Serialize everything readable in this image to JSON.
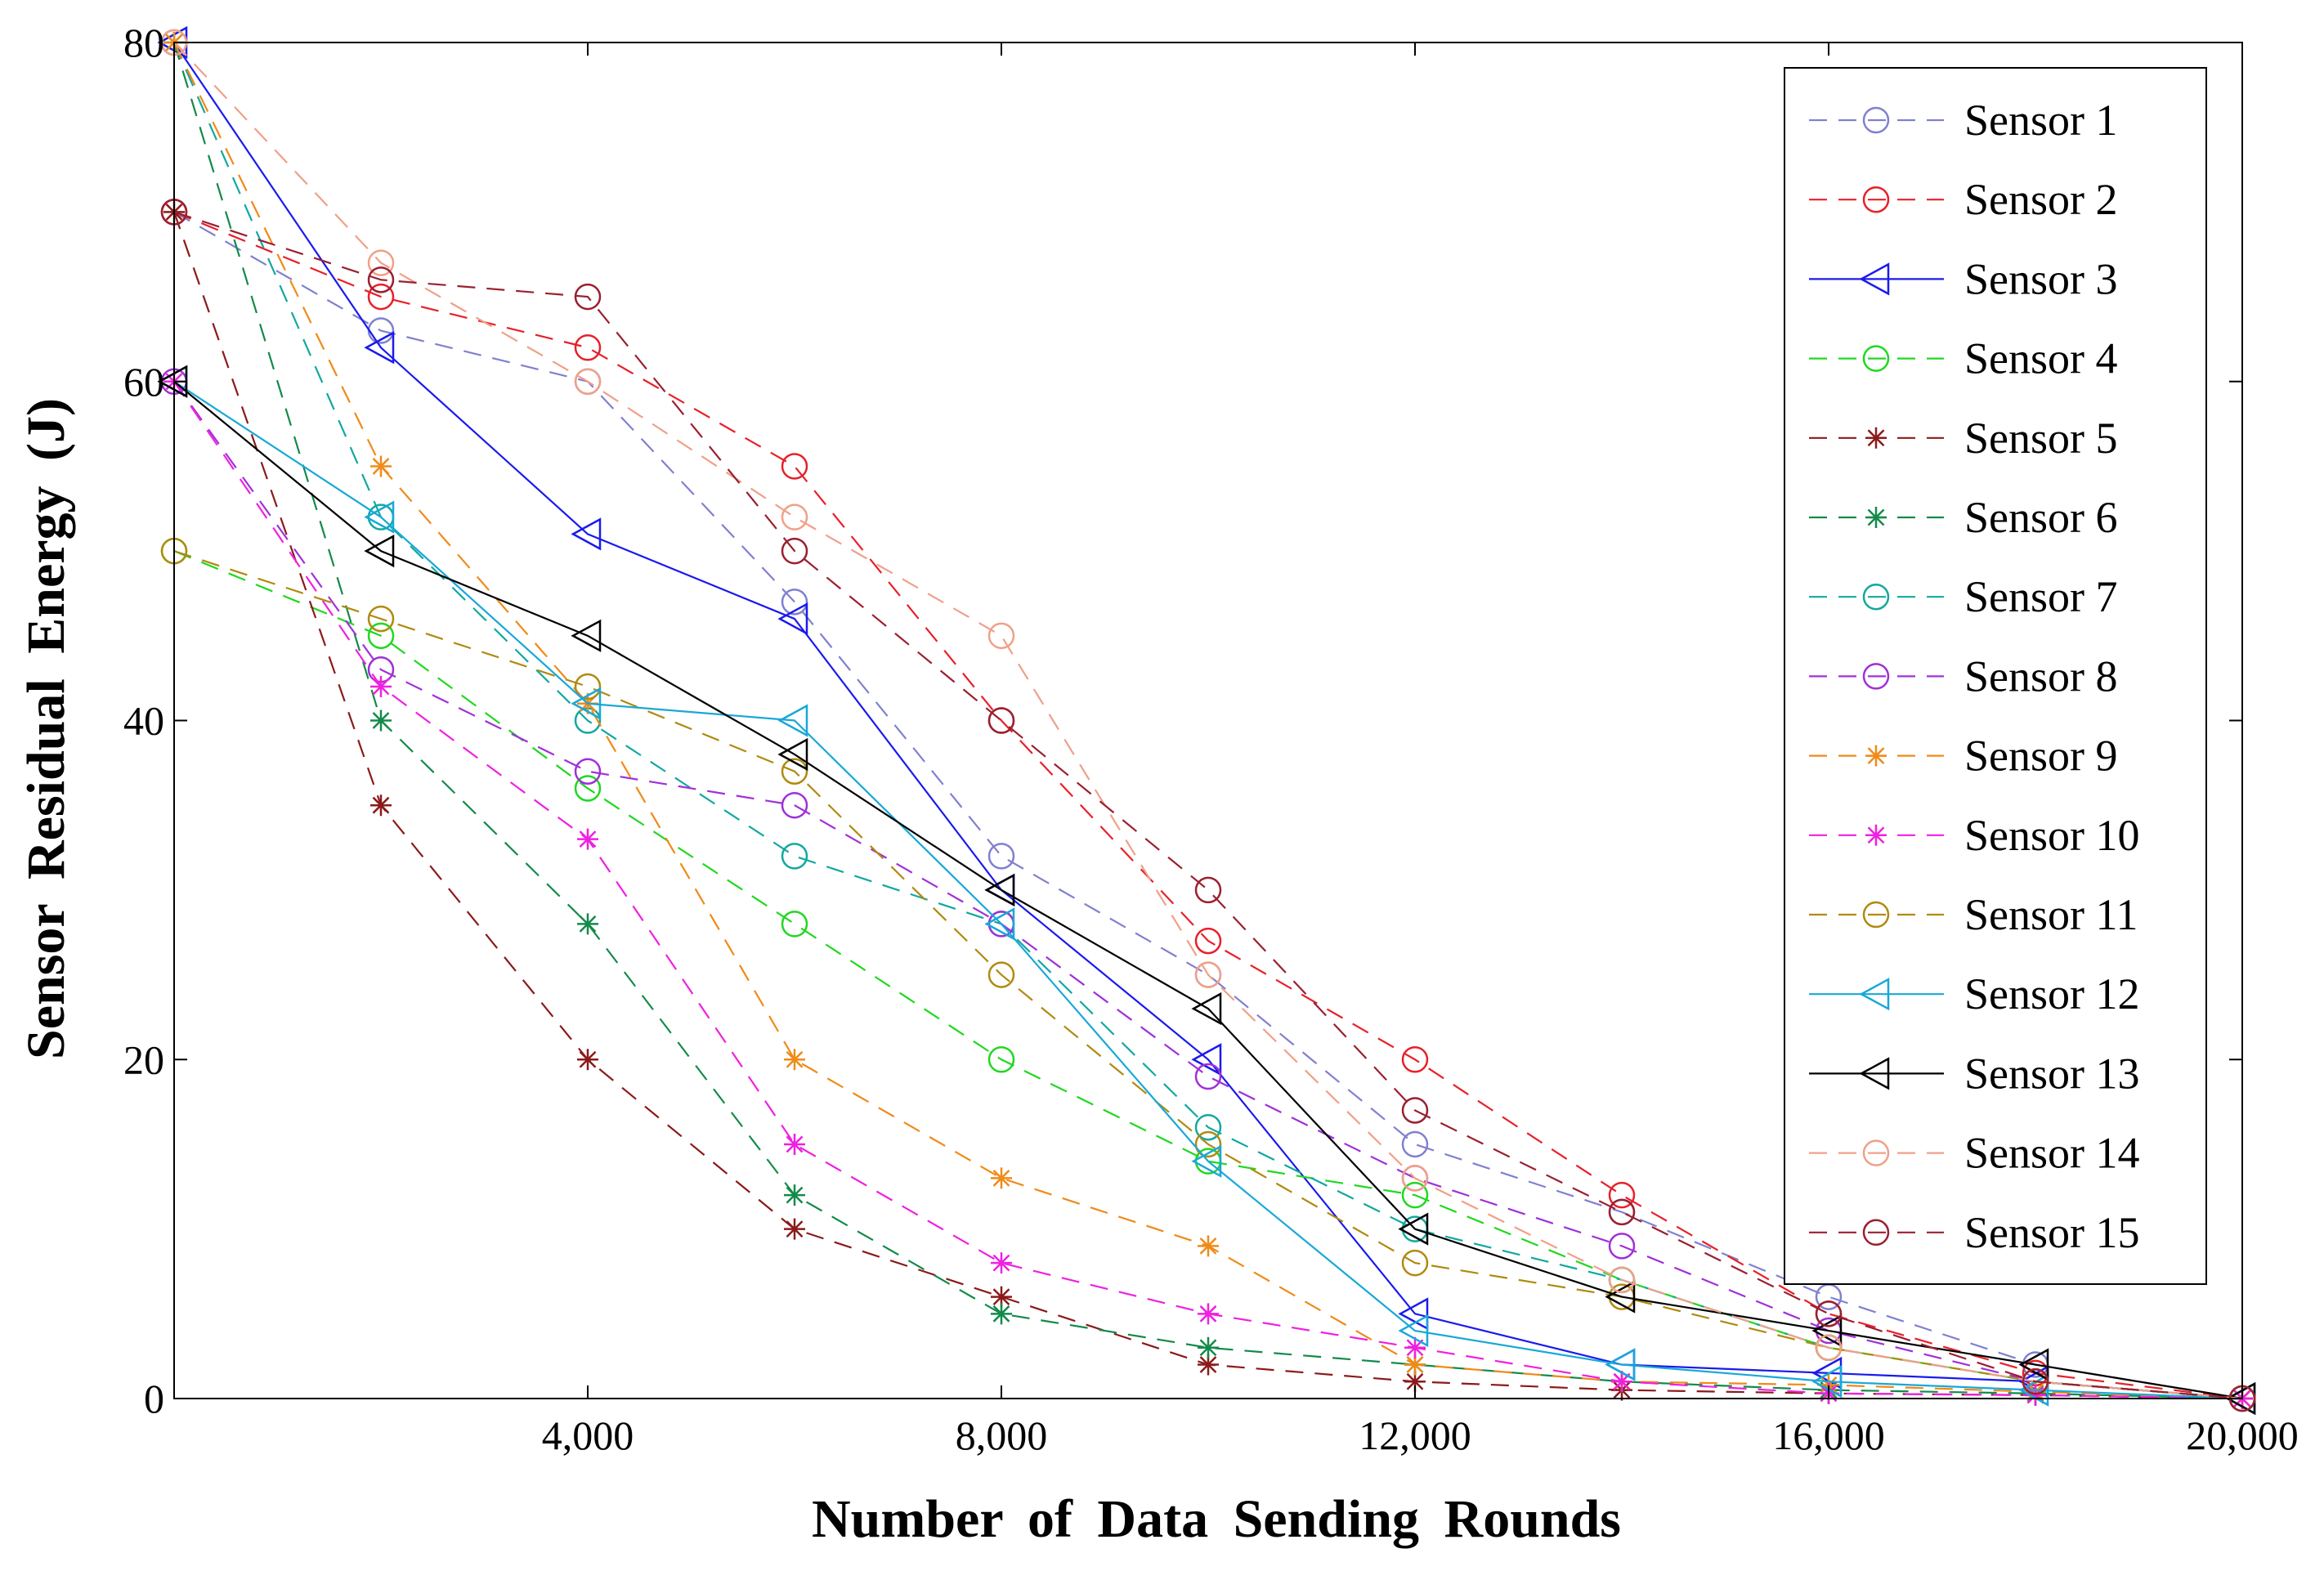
{
  "chart_data": {
    "type": "line",
    "title": "",
    "xlabel": "Number of Data Sending Rounds",
    "ylabel": "Sensor Residual Energy (J)",
    "xlim": [
      0,
      20000
    ],
    "ylim": [
      0,
      80
    ],
    "xticks": [
      4000,
      8000,
      12000,
      16000,
      20000
    ],
    "xtick_labels": [
      "4,000",
      "8,000",
      "12,000",
      "16,000",
      "20,000"
    ],
    "yticks": [
      0,
      20,
      40,
      60,
      80
    ],
    "ytick_labels": [
      "0",
      "20",
      "40",
      "60",
      "80"
    ],
    "grid": false,
    "legend_position": "top-right",
    "x": [
      0,
      2000,
      4000,
      6000,
      8000,
      10000,
      12000,
      14000,
      16000,
      18000,
      20000
    ],
    "series": [
      {
        "name": "Sensor 1",
        "color": "#8080d0",
        "marker": "circle",
        "dash": "dashed",
        "values": [
          70,
          63,
          60,
          47,
          32,
          25,
          15,
          11,
          6,
          2,
          0
        ]
      },
      {
        "name": "Sensor 2",
        "color": "#e8202a",
        "marker": "circle",
        "dash": "dashed",
        "values": [
          70,
          65,
          62,
          55,
          40,
          27,
          20,
          12,
          5,
          1.5,
          0
        ]
      },
      {
        "name": "Sensor 3",
        "color": "#1a1aee",
        "marker": "triangle-left",
        "dash": "solid",
        "values": [
          80,
          62,
          51,
          46,
          30,
          20,
          5,
          2,
          1.5,
          1,
          0
        ]
      },
      {
        "name": "Sensor 4",
        "color": "#20d820",
        "marker": "circle",
        "dash": "dashed",
        "values": [
          50,
          45,
          36,
          28,
          20,
          14,
          12,
          7,
          3,
          1,
          0
        ]
      },
      {
        "name": "Sensor 5",
        "color": "#8b1a1a",
        "marker": "asterisk",
        "dash": "dashed",
        "values": [
          70,
          35,
          20,
          10,
          6,
          2,
          1,
          0.5,
          0.3,
          0.2,
          0
        ]
      },
      {
        "name": "Sensor 6",
        "color": "#138a4a",
        "marker": "asterisk",
        "dash": "dashed",
        "values": [
          80,
          40,
          28,
          12,
          5,
          3,
          2,
          1,
          0.5,
          0.3,
          0
        ]
      },
      {
        "name": "Sensor 7",
        "color": "#12a8a0",
        "marker": "circle",
        "dash": "dashed",
        "values": [
          80,
          52,
          40,
          32,
          28,
          16,
          10,
          7,
          3,
          1,
          0
        ]
      },
      {
        "name": "Sensor 8",
        "color": "#a030d8",
        "marker": "circle",
        "dash": "dashed",
        "values": [
          60,
          43,
          37,
          35,
          28,
          19,
          13,
          9,
          4,
          1,
          0
        ]
      },
      {
        "name": "Sensor 9",
        "color": "#f08a18",
        "marker": "asterisk",
        "dash": "dashed",
        "values": [
          80,
          55,
          41,
          20,
          13,
          9,
          2,
          1,
          0.8,
          0.4,
          0
        ]
      },
      {
        "name": "Sensor 10",
        "color": "#f020e0",
        "marker": "asterisk",
        "dash": "dashed",
        "values": [
          60,
          42,
          33,
          15,
          8,
          5,
          3,
          1,
          0.3,
          0.2,
          0
        ]
      },
      {
        "name": "Sensor 11",
        "color": "#b08a10",
        "marker": "circle",
        "dash": "dashed",
        "values": [
          50,
          46,
          42,
          37,
          25,
          15,
          8,
          6,
          3,
          1,
          0
        ]
      },
      {
        "name": "Sensor 12",
        "color": "#18a8d8",
        "marker": "triangle-left",
        "dash": "solid",
        "values": [
          60,
          52,
          41,
          40,
          28,
          14,
          4,
          2,
          1,
          0.5,
          0
        ]
      },
      {
        "name": "Sensor 13",
        "color": "#000000",
        "marker": "triangle-left",
        "dash": "solid",
        "values": [
          60,
          50,
          45,
          38,
          30,
          23,
          10,
          6,
          4,
          2,
          0
        ]
      },
      {
        "name": "Sensor 14",
        "color": "#f0a088",
        "marker": "circle",
        "dash": "dashed",
        "values": [
          80,
          67,
          60,
          52,
          45,
          25,
          13,
          7,
          3,
          1,
          0
        ]
      },
      {
        "name": "Sensor 15",
        "color": "#9a2030",
        "marker": "circle",
        "dash": "dashed",
        "values": [
          70,
          66,
          65,
          50,
          40,
          30,
          17,
          11,
          5,
          1,
          0
        ]
      }
    ]
  }
}
